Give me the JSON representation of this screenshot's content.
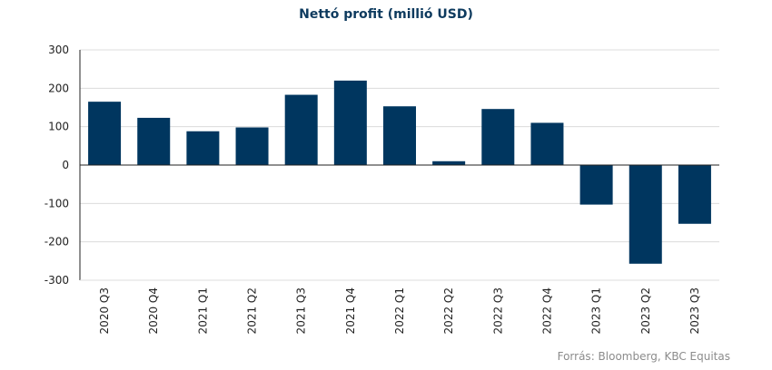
{
  "chart_data": {
    "type": "bar",
    "title": "Nettó profit (millió USD)",
    "categories": [
      "2020 Q3",
      "2020 Q4",
      "2021 Q1",
      "2021 Q2",
      "2021 Q3",
      "2021 Q4",
      "2022 Q1",
      "2022 Q2",
      "2022 Q3",
      "2022 Q4",
      "2023 Q1",
      "2023 Q2",
      "2023 Q3"
    ],
    "values": [
      165,
      123,
      88,
      98,
      183,
      220,
      153,
      10,
      146,
      110,
      -103,
      -257,
      -153
    ],
    "yticks": [
      "300",
      "200",
      "100",
      "0",
      "-100",
      "-200",
      "-300"
    ],
    "ylim": [
      -300,
      300
    ],
    "xlabel": "",
    "ylabel": "",
    "bar_color": "#00365f",
    "grid": true
  },
  "source": "Forrás: Bloomberg, KBC Equitas"
}
